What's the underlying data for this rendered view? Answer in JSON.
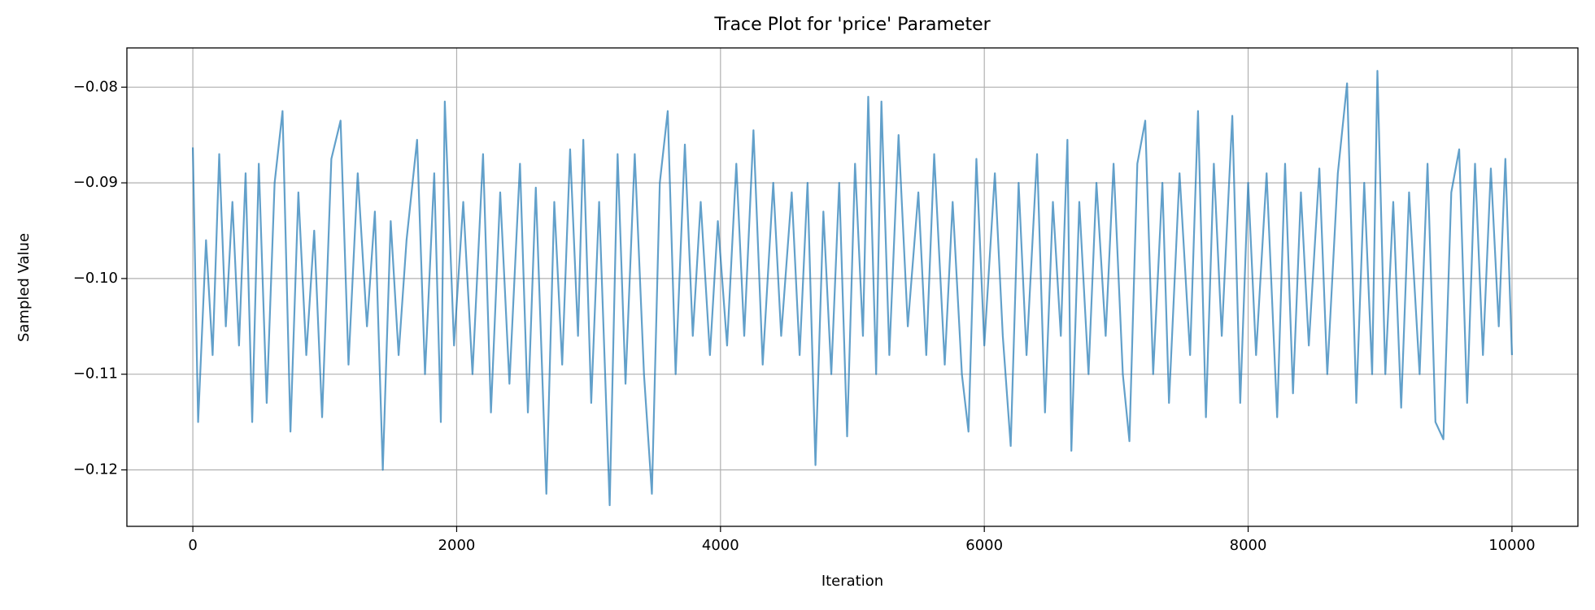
{
  "chart_data": {
    "type": "line",
    "title": "Trace Plot for 'price' Parameter",
    "x_label": "Iteration",
    "y_label": "Sampled Value",
    "color": "#1f77b4",
    "grid": true,
    "xlim": [
      -500,
      10500
    ],
    "ylim": [
      -0.1259,
      -0.0759
    ],
    "xticks": [
      0,
      2000,
      4000,
      6000,
      8000,
      10000
    ],
    "yticks": [
      {
        "value": -0.12,
        "label": "−0.12"
      },
      {
        "value": -0.11,
        "label": "−0.11"
      },
      {
        "value": -0.1,
        "label": "−0.10"
      },
      {
        "value": -0.09,
        "label": "−0.09"
      },
      {
        "value": -0.08,
        "label": "−0.08"
      }
    ],
    "x": [
      0,
      40,
      100,
      150,
      200,
      250,
      300,
      350,
      400,
      450,
      500,
      560,
      620,
      680,
      740,
      800,
      860,
      920,
      980,
      1050,
      1120,
      1180,
      1250,
      1320,
      1380,
      1440,
      1500,
      1560,
      1620,
      1700,
      1760,
      1830,
      1880,
      1910,
      1980,
      2050,
      2120,
      2200,
      2260,
      2330,
      2400,
      2480,
      2540,
      2600,
      2680,
      2740,
      2800,
      2860,
      2920,
      2960,
      3020,
      3080,
      3160,
      3220,
      3280,
      3350,
      3420,
      3480,
      3540,
      3600,
      3660,
      3730,
      3790,
      3850,
      3920,
      3980,
      4050,
      4120,
      4180,
      4250,
      4320,
      4400,
      4460,
      4540,
      4600,
      4660,
      4720,
      4780,
      4840,
      4900,
      4960,
      5020,
      5080,
      5120,
      5180,
      5220,
      5280,
      5350,
      5420,
      5500,
      5560,
      5620,
      5700,
      5760,
      5830,
      5880,
      5940,
      6000,
      6080,
      6140,
      6200,
      6260,
      6320,
      6400,
      6460,
      6520,
      6580,
      6630,
      6660,
      6720,
      6790,
      6850,
      6920,
      6980,
      7050,
      7100,
      7160,
      7220,
      7280,
      7350,
      7400,
      7480,
      7560,
      7620,
      7680,
      7740,
      7800,
      7880,
      7940,
      8000,
      8060,
      8140,
      8220,
      8280,
      8340,
      8400,
      8460,
      8540,
      8600,
      8680,
      8750,
      8820,
      8880,
      8940,
      8980,
      9040,
      9100,
      9160,
      9220,
      9300,
      9360,
      9420,
      9480,
      9540,
      9600,
      9660,
      9720,
      9780,
      9840,
      9900,
      9950,
      10000
    ],
    "values": [
      -0.0863,
      -0.115,
      -0.096,
      -0.108,
      -0.087,
      -0.105,
      -0.092,
      -0.107,
      -0.089,
      -0.115,
      -0.088,
      -0.113,
      -0.09,
      -0.0825,
      -0.116,
      -0.091,
      -0.108,
      -0.095,
      -0.1145,
      -0.0875,
      -0.0835,
      -0.109,
      -0.089,
      -0.105,
      -0.093,
      -0.12,
      -0.094,
      -0.108,
      -0.096,
      -0.0855,
      -0.11,
      -0.089,
      -0.115,
      -0.0815,
      -0.107,
      -0.092,
      -0.11,
      -0.087,
      -0.114,
      -0.091,
      -0.111,
      -0.088,
      -0.114,
      -0.0905,
      -0.1225,
      -0.092,
      -0.109,
      -0.0865,
      -0.106,
      -0.0855,
      -0.113,
      -0.092,
      -0.1237,
      -0.087,
      -0.111,
      -0.087,
      -0.11,
      -0.1225,
      -0.09,
      -0.0825,
      -0.11,
      -0.086,
      -0.106,
      -0.092,
      -0.108,
      -0.094,
      -0.107,
      -0.088,
      -0.106,
      -0.0845,
      -0.109,
      -0.09,
      -0.106,
      -0.091,
      -0.108,
      -0.09,
      -0.1195,
      -0.093,
      -0.11,
      -0.09,
      -0.1165,
      -0.088,
      -0.106,
      -0.081,
      -0.11,
      -0.0815,
      -0.108,
      -0.085,
      -0.105,
      -0.091,
      -0.108,
      -0.087,
      -0.109,
      -0.092,
      -0.11,
      -0.116,
      -0.0875,
      -0.107,
      -0.089,
      -0.106,
      -0.1175,
      -0.09,
      -0.108,
      -0.087,
      -0.114,
      -0.092,
      -0.106,
      -0.0855,
      -0.118,
      -0.092,
      -0.11,
      -0.09,
      -0.106,
      -0.088,
      -0.11,
      -0.117,
      -0.088,
      -0.0835,
      -0.11,
      -0.09,
      -0.113,
      -0.089,
      -0.108,
      -0.0825,
      -0.1145,
      -0.088,
      -0.106,
      -0.083,
      -0.113,
      -0.09,
      -0.108,
      -0.089,
      -0.1145,
      -0.088,
      -0.112,
      -0.091,
      -0.107,
      -0.0885,
      -0.11,
      -0.089,
      -0.0796,
      -0.113,
      -0.09,
      -0.11,
      -0.0783,
      -0.11,
      -0.092,
      -0.1135,
      -0.091,
      -0.11,
      -0.088,
      -0.115,
      -0.1168,
      -0.091,
      -0.0865,
      -0.113,
      -0.088,
      -0.108,
      -0.0885,
      -0.105,
      -0.0875,
      -0.108
    ]
  }
}
